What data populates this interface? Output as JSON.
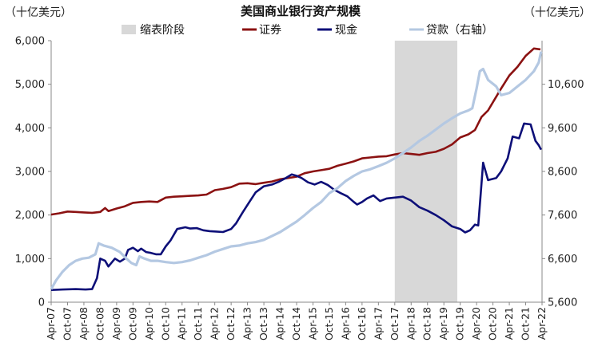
{
  "chart_data": {
    "type": "line",
    "title": "美国商业银行资产规模",
    "y_left_unit": "（十亿美元）",
    "y_right_unit": "（十亿美元）",
    "ylim_left": [
      0,
      6000
    ],
    "ylim_right": [
      5600,
      11600
    ],
    "yticks_left": [
      "0",
      "1,000",
      "2,000",
      "3,000",
      "4,000",
      "5,000",
      "6,000"
    ],
    "yticks_right": [
      "5,600",
      "6,600",
      "7,600",
      "8,600",
      "9,600",
      "10,600"
    ],
    "xlim": [
      2007.25,
      2022.25
    ],
    "x_tick_labels": [
      "Apr-07",
      "Oct-07",
      "Apr-08",
      "Oct-08",
      "Apr-09",
      "Oct-09",
      "Apr-10",
      "Oct-10",
      "Apr-11",
      "Oct-11",
      "Apr-12",
      "Oct-12",
      "Apr-13",
      "Oct-13",
      "Apr-14",
      "Oct-14",
      "Apr-15",
      "Oct-15",
      "Apr-16",
      "Oct-16",
      "Apr-17",
      "Oct-17",
      "Apr-18",
      "Oct-18",
      "Apr-19",
      "Oct-19",
      "Apr-20",
      "Oct-20",
      "Apr-21",
      "Oct-21",
      "Apr-22"
    ],
    "legend": {
      "shade": "缩表阶段",
      "securities": "证券",
      "cash": "现金",
      "loans": "贷款（右轴）"
    },
    "shaded_period": [
      2017.75,
      2019.66
    ],
    "colors": {
      "securities": "#8b1212",
      "cash": "#0d0f78",
      "loans": "#b4c8e2",
      "shade": "#d8d8d8"
    },
    "series": [
      {
        "key": "securities",
        "axis": "left",
        "points": [
          [
            2007.25,
            2010
          ],
          [
            2007.5,
            2040
          ],
          [
            2007.75,
            2080
          ],
          [
            2008.0,
            2070
          ],
          [
            2008.25,
            2060
          ],
          [
            2008.5,
            2050
          ],
          [
            2008.75,
            2070
          ],
          [
            2008.9,
            2160
          ],
          [
            2009.0,
            2090
          ],
          [
            2009.25,
            2150
          ],
          [
            2009.5,
            2200
          ],
          [
            2009.75,
            2280
          ],
          [
            2010.0,
            2300
          ],
          [
            2010.25,
            2310
          ],
          [
            2010.5,
            2300
          ],
          [
            2010.75,
            2400
          ],
          [
            2011.0,
            2420
          ],
          [
            2011.25,
            2430
          ],
          [
            2011.5,
            2440
          ],
          [
            2011.75,
            2450
          ],
          [
            2012.0,
            2470
          ],
          [
            2012.25,
            2570
          ],
          [
            2012.5,
            2600
          ],
          [
            2012.75,
            2640
          ],
          [
            2013.0,
            2720
          ],
          [
            2013.25,
            2730
          ],
          [
            2013.5,
            2710
          ],
          [
            2013.75,
            2740
          ],
          [
            2014.0,
            2770
          ],
          [
            2014.25,
            2820
          ],
          [
            2014.5,
            2850
          ],
          [
            2014.75,
            2880
          ],
          [
            2015.0,
            2960
          ],
          [
            2015.25,
            3000
          ],
          [
            2015.5,
            3030
          ],
          [
            2015.75,
            3060
          ],
          [
            2016.0,
            3130
          ],
          [
            2016.25,
            3180
          ],
          [
            2016.5,
            3230
          ],
          [
            2016.75,
            3300
          ],
          [
            2017.0,
            3320
          ],
          [
            2017.25,
            3340
          ],
          [
            2017.5,
            3350
          ],
          [
            2017.75,
            3390
          ],
          [
            2018.0,
            3420
          ],
          [
            2018.25,
            3400
          ],
          [
            2018.5,
            3380
          ],
          [
            2018.75,
            3420
          ],
          [
            2019.0,
            3450
          ],
          [
            2019.25,
            3520
          ],
          [
            2019.5,
            3620
          ],
          [
            2019.75,
            3780
          ],
          [
            2020.0,
            3850
          ],
          [
            2020.2,
            3950
          ],
          [
            2020.4,
            4250
          ],
          [
            2020.6,
            4400
          ],
          [
            2020.8,
            4650
          ],
          [
            2021.0,
            4900
          ],
          [
            2021.25,
            5200
          ],
          [
            2021.5,
            5400
          ],
          [
            2021.75,
            5650
          ],
          [
            2022.0,
            5820
          ],
          [
            2022.2,
            5800
          ]
        ]
      },
      {
        "key": "cash",
        "axis": "left",
        "points": [
          [
            2007.25,
            280
          ],
          [
            2007.6,
            290
          ],
          [
            2008.0,
            300
          ],
          [
            2008.3,
            290
          ],
          [
            2008.5,
            300
          ],
          [
            2008.65,
            550
          ],
          [
            2008.75,
            1000
          ],
          [
            2008.9,
            950
          ],
          [
            2009.0,
            820
          ],
          [
            2009.2,
            1000
          ],
          [
            2009.35,
            930
          ],
          [
            2009.5,
            1000
          ],
          [
            2009.6,
            1200
          ],
          [
            2009.75,
            1250
          ],
          [
            2009.9,
            1170
          ],
          [
            2010.0,
            1230
          ],
          [
            2010.15,
            1150
          ],
          [
            2010.3,
            1130
          ],
          [
            2010.45,
            1100
          ],
          [
            2010.6,
            1100
          ],
          [
            2010.75,
            1280
          ],
          [
            2010.9,
            1420
          ],
          [
            2011.1,
            1680
          ],
          [
            2011.35,
            1720
          ],
          [
            2011.5,
            1690
          ],
          [
            2011.7,
            1700
          ],
          [
            2011.9,
            1650
          ],
          [
            2012.1,
            1630
          ],
          [
            2012.3,
            1620
          ],
          [
            2012.5,
            1610
          ],
          [
            2012.75,
            1680
          ],
          [
            2012.9,
            1810
          ],
          [
            2013.1,
            2060
          ],
          [
            2013.3,
            2290
          ],
          [
            2013.5,
            2520
          ],
          [
            2013.75,
            2660
          ],
          [
            2014.0,
            2700
          ],
          [
            2014.2,
            2760
          ],
          [
            2014.4,
            2840
          ],
          [
            2014.6,
            2930
          ],
          [
            2014.75,
            2900
          ],
          [
            2014.9,
            2850
          ],
          [
            2015.1,
            2750
          ],
          [
            2015.3,
            2700
          ],
          [
            2015.5,
            2760
          ],
          [
            2015.7,
            2690
          ],
          [
            2015.9,
            2580
          ],
          [
            2016.1,
            2500
          ],
          [
            2016.3,
            2430
          ],
          [
            2016.5,
            2300
          ],
          [
            2016.6,
            2240
          ],
          [
            2016.75,
            2300
          ],
          [
            2016.9,
            2380
          ],
          [
            2017.1,
            2450
          ],
          [
            2017.3,
            2320
          ],
          [
            2017.5,
            2380
          ],
          [
            2017.75,
            2400
          ],
          [
            2018.0,
            2420
          ],
          [
            2018.25,
            2330
          ],
          [
            2018.5,
            2180
          ],
          [
            2018.75,
            2100
          ],
          [
            2019.0,
            2000
          ],
          [
            2019.25,
            1880
          ],
          [
            2019.5,
            1740
          ],
          [
            2019.75,
            1680
          ],
          [
            2019.9,
            1600
          ],
          [
            2020.05,
            1650
          ],
          [
            2020.2,
            1780
          ],
          [
            2020.3,
            1760
          ],
          [
            2020.45,
            3200
          ],
          [
            2020.6,
            2800
          ],
          [
            2020.85,
            2850
          ],
          [
            2021.0,
            3000
          ],
          [
            2021.2,
            3300
          ],
          [
            2021.35,
            3800
          ],
          [
            2021.55,
            3760
          ],
          [
            2021.7,
            4100
          ],
          [
            2021.9,
            4080
          ],
          [
            2022.05,
            3700
          ],
          [
            2022.15,
            3600
          ],
          [
            2022.22,
            3500
          ]
        ]
      },
      {
        "key": "loans",
        "axis": "right",
        "points": [
          [
            2007.25,
            5900
          ],
          [
            2007.4,
            6100
          ],
          [
            2007.6,
            6300
          ],
          [
            2007.8,
            6450
          ],
          [
            2008.0,
            6550
          ],
          [
            2008.2,
            6600
          ],
          [
            2008.4,
            6620
          ],
          [
            2008.6,
            6700
          ],
          [
            2008.7,
            6950
          ],
          [
            2008.85,
            6900
          ],
          [
            2009.1,
            6850
          ],
          [
            2009.35,
            6750
          ],
          [
            2009.55,
            6600
          ],
          [
            2009.7,
            6500
          ],
          [
            2009.85,
            6450
          ],
          [
            2009.95,
            6650
          ],
          [
            2010.1,
            6600
          ],
          [
            2010.3,
            6550
          ],
          [
            2010.5,
            6550
          ],
          [
            2010.75,
            6520
          ],
          [
            2011.0,
            6500
          ],
          [
            2011.25,
            6520
          ],
          [
            2011.5,
            6560
          ],
          [
            2011.75,
            6620
          ],
          [
            2012.0,
            6680
          ],
          [
            2012.25,
            6760
          ],
          [
            2012.5,
            6820
          ],
          [
            2012.75,
            6880
          ],
          [
            2013.0,
            6900
          ],
          [
            2013.25,
            6950
          ],
          [
            2013.5,
            6980
          ],
          [
            2013.75,
            7030
          ],
          [
            2014.0,
            7120
          ],
          [
            2014.25,
            7210
          ],
          [
            2014.5,
            7330
          ],
          [
            2014.75,
            7450
          ],
          [
            2015.0,
            7600
          ],
          [
            2015.25,
            7760
          ],
          [
            2015.5,
            7900
          ],
          [
            2015.75,
            8100
          ],
          [
            2016.0,
            8220
          ],
          [
            2016.25,
            8380
          ],
          [
            2016.5,
            8500
          ],
          [
            2016.75,
            8600
          ],
          [
            2017.0,
            8650
          ],
          [
            2017.25,
            8720
          ],
          [
            2017.5,
            8800
          ],
          [
            2017.75,
            8900
          ],
          [
            2018.0,
            9020
          ],
          [
            2018.25,
            9150
          ],
          [
            2018.5,
            9300
          ],
          [
            2018.75,
            9420
          ],
          [
            2019.0,
            9560
          ],
          [
            2019.25,
            9700
          ],
          [
            2019.5,
            9820
          ],
          [
            2019.75,
            9930
          ],
          [
            2020.0,
            10000
          ],
          [
            2020.12,
            10050
          ],
          [
            2020.25,
            10500
          ],
          [
            2020.35,
            10900
          ],
          [
            2020.45,
            10950
          ],
          [
            2020.6,
            10700
          ],
          [
            2020.85,
            10550
          ],
          [
            2021.0,
            10350
          ],
          [
            2021.25,
            10400
          ],
          [
            2021.5,
            10550
          ],
          [
            2021.75,
            10700
          ],
          [
            2022.0,
            10900
          ],
          [
            2022.15,
            11100
          ],
          [
            2022.22,
            11350
          ]
        ]
      }
    ]
  }
}
